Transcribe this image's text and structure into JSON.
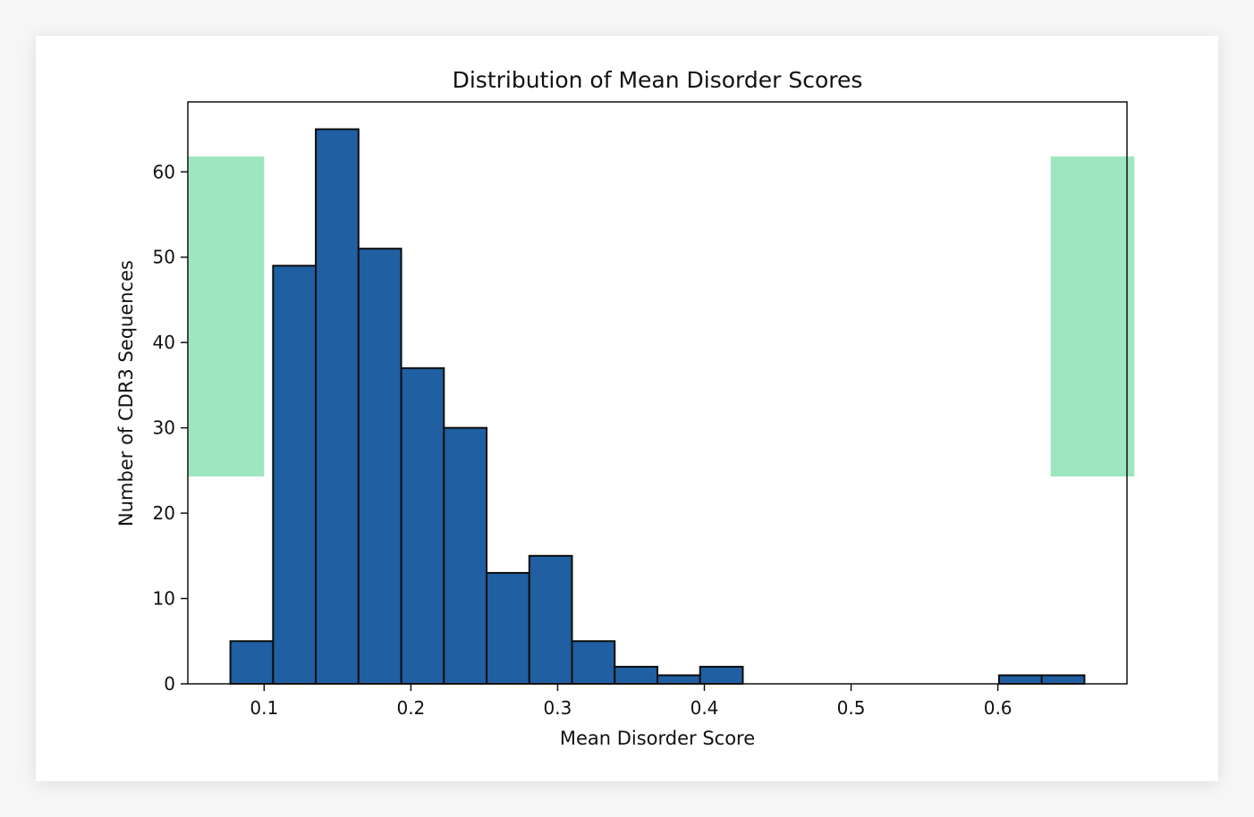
{
  "chart_data": {
    "type": "bar",
    "title": "Distribution of Mean Disorder Scores",
    "xlabel": "Mean Disorder Score",
    "ylabel": "Number of CDR3 Sequences",
    "xlim": [
      0.048,
      0.688
    ],
    "ylim": [
      0,
      68.2
    ],
    "grid": false,
    "legend": "none",
    "xticks": [
      0.1,
      0.2,
      0.3,
      0.4,
      0.5,
      0.6
    ],
    "xtick_labels": [
      "0.1",
      "0.2",
      "0.3",
      "0.4",
      "0.5",
      "0.6"
    ],
    "yticks": [
      0,
      10,
      20,
      30,
      40,
      50,
      60
    ],
    "ytick_labels": [
      "0",
      "10",
      "20",
      "30",
      "40",
      "50",
      "60"
    ],
    "bin_edges": [
      0.077,
      0.1061,
      0.1352,
      0.1643,
      0.1934,
      0.2225,
      0.2516,
      0.2807,
      0.3098,
      0.3389,
      0.368,
      0.3971,
      0.4262,
      0.4553,
      0.4844,
      0.5135,
      0.5426,
      0.5717,
      0.6008,
      0.6299,
      0.659
    ],
    "values": [
      5,
      49,
      65,
      51,
      37,
      30,
      13,
      15,
      5,
      2,
      1,
      2,
      0,
      0,
      0,
      0,
      0,
      0,
      1,
      1
    ],
    "colors": {
      "bar_fill": "#1f5fa2",
      "bar_edge": "#0d0d0d",
      "overlay": "#9de6bf"
    },
    "overlays": [
      {
        "x": [
          0.048,
          0.1
        ],
        "y": [
          24.3,
          61.8
        ]
      },
      {
        "x": [
          0.636,
          0.693
        ],
        "y": [
          24.3,
          61.8
        ]
      }
    ]
  }
}
